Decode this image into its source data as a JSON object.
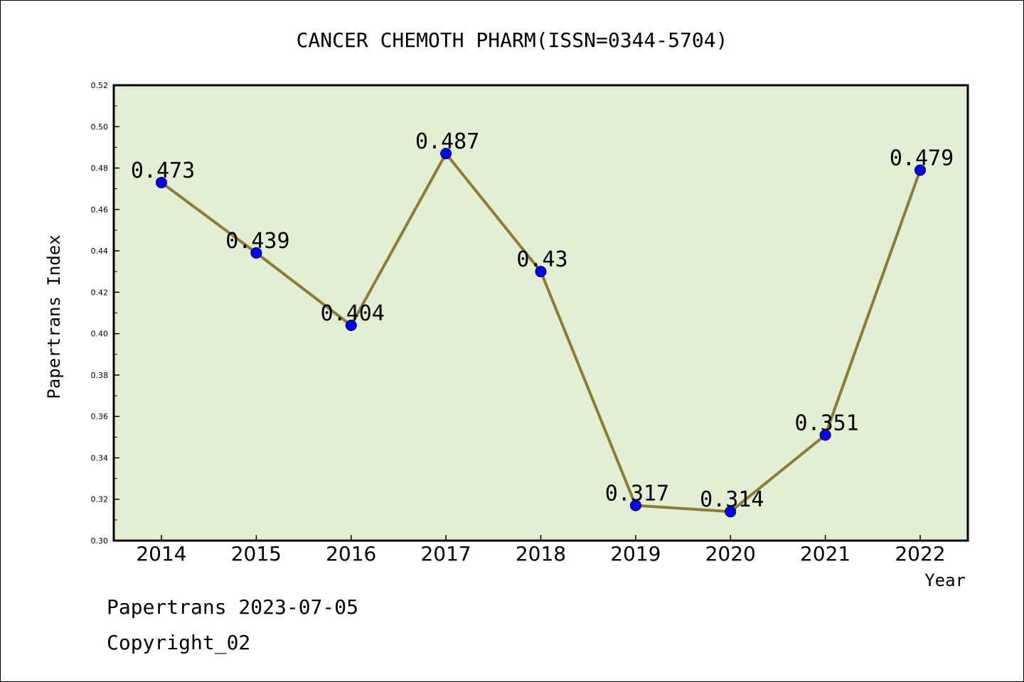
{
  "chart_data": {
    "type": "line",
    "title": "CANCER CHEMOTH PHARM(ISSN=0344-5704)",
    "xlabel": "Year",
    "ylabel": "Papertrans Index",
    "x": [
      "2014",
      "2015",
      "2016",
      "2017",
      "2018",
      "2019",
      "2020",
      "2021",
      "2022"
    ],
    "series": [
      {
        "values": [
          0.473,
          0.439,
          0.404,
          0.487,
          0.43,
          0.317,
          0.314,
          0.351,
          0.479
        ]
      }
    ],
    "data_labels": [
      "0.473",
      "0.439",
      "0.404",
      "0.487",
      "0.43",
      "0.317",
      "0.314",
      "0.351",
      "0.479"
    ],
    "ylim": [
      0.3,
      0.52
    ],
    "y_ticks": [
      "0.30",
      "0.32",
      "0.34",
      "0.36",
      "0.38",
      "0.40",
      "0.42",
      "0.44",
      "0.46",
      "0.48",
      "0.50",
      "0.52"
    ],
    "grid": false,
    "colors": {
      "plot_background": "#e2efd5",
      "line": "#8b7d35",
      "marker": "#0000ff"
    }
  },
  "footer": {
    "date_line": "Papertrans 2023-07-05",
    "copyright": "Copyright_02"
  }
}
